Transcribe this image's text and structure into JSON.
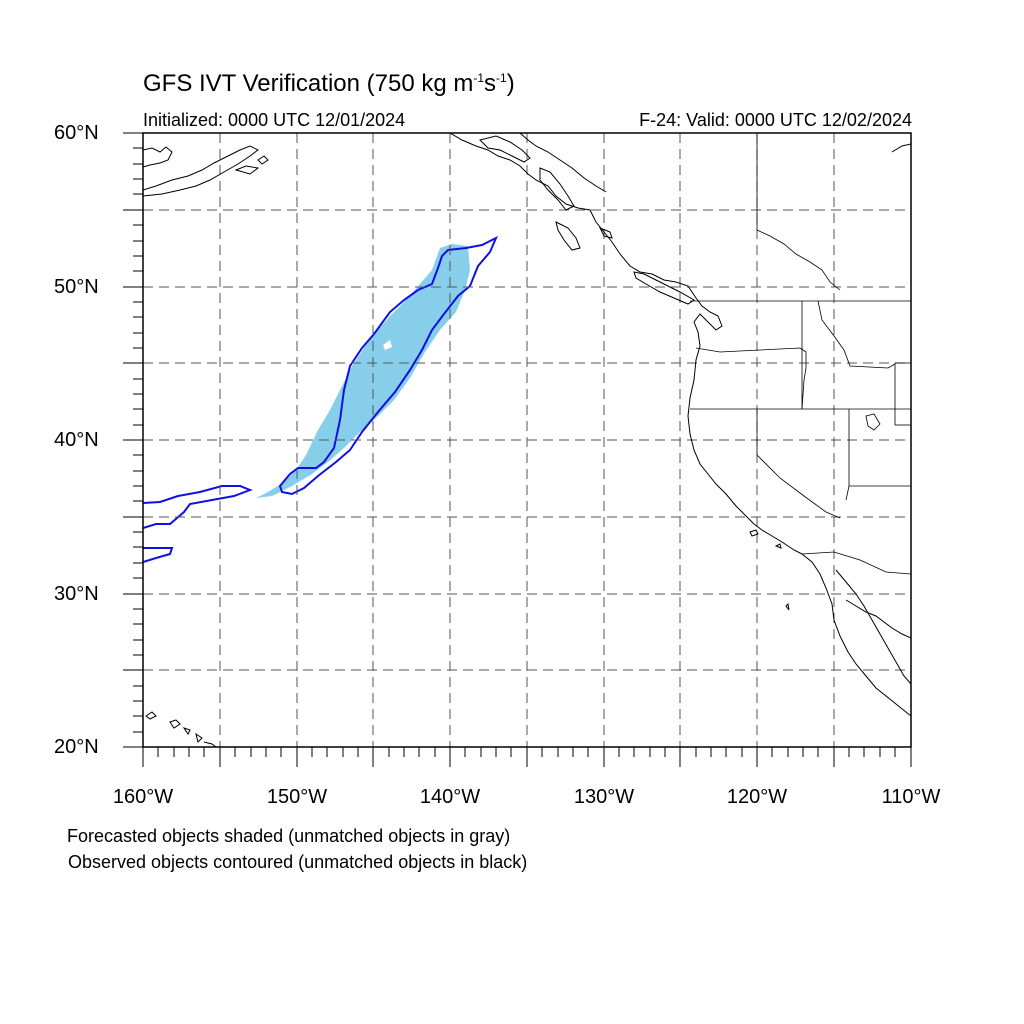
{
  "title": {
    "prefix": "GFS IVT Verification (750 kg m",
    "exp1": "-1",
    "mid": "s",
    "exp2": "-1",
    "suffix": ")"
  },
  "subtitle": {
    "initialized": "Initialized: 0000 UTC 12/01/2024",
    "valid": "F-24: Valid: 0000 UTC 12/02/2024"
  },
  "axes": {
    "lat_labels": [
      "60°N",
      "50°N",
      "40°N",
      "30°N",
      "20°N"
    ],
    "lon_labels": [
      "160°W",
      "150°W",
      "140°W",
      "130°W",
      "120°W",
      "110°W"
    ],
    "lat_range": [
      20,
      60
    ],
    "lon_range": [
      -160,
      -110
    ]
  },
  "legend": {
    "forecast": "Forecasted objects shaded (unmatched objects in gray)",
    "observed": "Observed objects contoured (unmatched objects in black)"
  },
  "colors": {
    "forecast_fill": "#87ceeb",
    "observed_contour": "#1010e0",
    "coastline": "#000000"
  }
}
